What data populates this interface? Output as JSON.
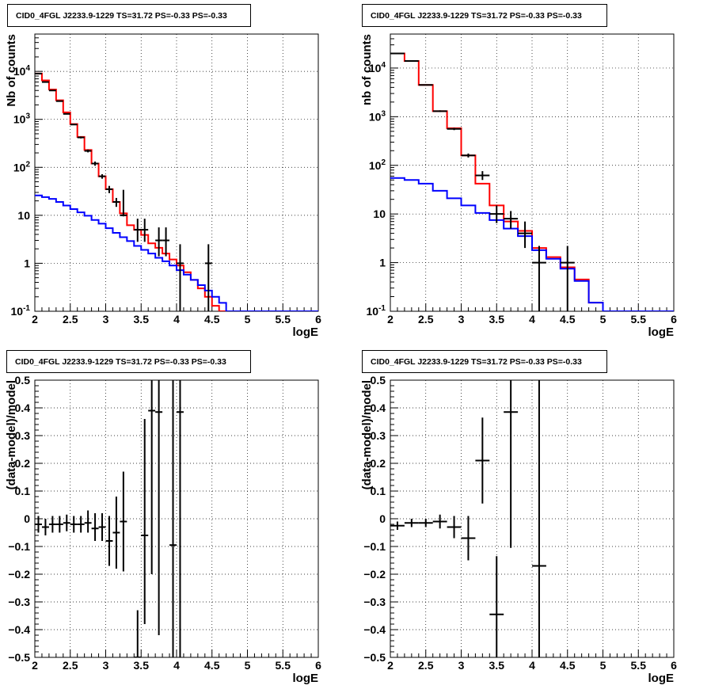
{
  "chart_data": [
    {
      "type": "line",
      "title": "CID0_4FGL J2233.9-1229 TS=31.72 PS=-0.33 PS=-0.33",
      "xlabel": "logE",
      "ylabel": "Nb of counts",
      "xlim": [
        2,
        6
      ],
      "ylim": [
        0.1,
        60000
      ],
      "yscale": "log",
      "grid": true,
      "x_ticks": [
        "2",
        "2.5",
        "3",
        "3.5",
        "4",
        "4.5",
        "5",
        "5.5",
        "6"
      ],
      "y_ticks": [
        {
          "v": 0.1,
          "label": "10^-1"
        },
        {
          "v": 1,
          "label": "1"
        },
        {
          "v": 10,
          "label": "10"
        },
        {
          "v": 100,
          "label": "10^2"
        },
        {
          "v": 1000,
          "label": "10^3"
        },
        {
          "v": 10000,
          "label": "10^4"
        }
      ],
      "series": [
        {
          "color": "#ff0000",
          "kind": "hist",
          "bin_width": 0.1,
          "x": [
            2.0,
            2.1,
            2.2,
            2.3,
            2.4,
            2.5,
            2.6,
            2.7,
            2.8,
            2.9,
            3.0,
            3.1,
            3.2,
            3.3,
            3.4,
            3.5,
            3.6,
            3.7,
            3.8,
            3.9,
            4.0,
            4.1,
            4.2,
            4.3,
            4.4,
            4.5,
            4.6,
            4.7,
            4.8,
            4.9,
            5.0,
            5.1,
            5.2,
            5.3,
            5.4,
            5.5,
            5.6,
            5.7,
            5.8,
            5.9
          ],
          "y": [
            9000,
            6500,
            4200,
            2500,
            1400,
            800,
            430,
            230,
            120,
            65,
            35,
            19,
            11,
            6.2,
            5,
            3.9,
            2.6,
            2.1,
            1.6,
            1.2,
            0.9,
            0.65,
            0.45,
            0.3,
            0.2,
            0.13,
            0.1,
            0.1,
            0.1,
            0.1,
            0.1,
            0.1,
            0.1,
            0.1,
            0.1,
            0.1,
            0.1,
            0.1,
            0.1,
            0.1
          ]
        },
        {
          "color": "#0000ff",
          "kind": "hist",
          "bin_width": 0.1,
          "x": [
            2.0,
            2.1,
            2.2,
            2.3,
            2.4,
            2.5,
            2.6,
            2.7,
            2.8,
            2.9,
            3.0,
            3.1,
            3.2,
            3.3,
            3.4,
            3.5,
            3.6,
            3.7,
            3.8,
            3.9,
            4.0,
            4.1,
            4.2,
            4.3,
            4.4,
            4.5,
            4.6,
            4.7,
            4.8,
            4.9,
            5.0,
            5.1,
            5.2,
            5.3,
            5.4,
            5.5,
            5.6,
            5.7,
            5.8,
            5.9
          ],
          "y": [
            26,
            24,
            22,
            19,
            16,
            13.5,
            11.5,
            9.8,
            8,
            6.7,
            5.4,
            4.3,
            3.5,
            2.9,
            2.3,
            1.9,
            1.6,
            1.3,
            1.1,
            0.9,
            0.72,
            0.58,
            0.45,
            0.35,
            0.27,
            0.2,
            0.15,
            0.1,
            0.1,
            0.1,
            0.1,
            0.1,
            0.1,
            0.1,
            0.1,
            0.1,
            0.1,
            0.1,
            0.1,
            0.1
          ]
        },
        {
          "color": "#000000",
          "kind": "points",
          "x_half": 0.05,
          "x": [
            2.05,
            2.15,
            2.25,
            2.35,
            2.45,
            2.55,
            2.65,
            2.75,
            2.85,
            2.95,
            3.05,
            3.15,
            3.25,
            3.45,
            3.55,
            3.75,
            3.85,
            4.05,
            4.45
          ],
          "y": [
            9000,
            6000,
            4000,
            2400,
            1300,
            780,
            420,
            220,
            120,
            65,
            35,
            19,
            10,
            5,
            5,
            3,
            3,
            1,
            1
          ],
          "ylo": [
            8800,
            5900,
            3930,
            2350,
            1270,
            760,
            400,
            205,
            108,
            58,
            29,
            15,
            9.5,
            2.8,
            2.8,
            1.4,
            1.4,
            0.1,
            0.1
          ],
          "yhi": [
            9200,
            6100,
            4070,
            2450,
            1330,
            800,
            440,
            235,
            132,
            72,
            41,
            23,
            34,
            8.5,
            8.5,
            5.6,
            5.6,
            2.5,
            2.5
          ]
        }
      ]
    },
    {
      "type": "line",
      "title": "CID0_4FGL J2233.9-1229 TS=31.72 PS=-0.33 PS=-0.33",
      "xlabel": "logE",
      "ylabel": "nb of counts",
      "xlim": [
        2,
        6
      ],
      "ylim": [
        0.1,
        50000
      ],
      "yscale": "log",
      "grid": true,
      "x_ticks": [
        "2",
        "2.5",
        "3",
        "3.5",
        "4",
        "4.5",
        "5",
        "5.5",
        "6"
      ],
      "y_ticks": [
        {
          "v": 0.1,
          "label": "10^-1"
        },
        {
          "v": 1,
          "label": "1"
        },
        {
          "v": 10,
          "label": "10"
        },
        {
          "v": 100,
          "label": "10^2"
        },
        {
          "v": 1000,
          "label": "10^3"
        },
        {
          "v": 10000,
          "label": "10^4"
        }
      ],
      "series": [
        {
          "color": "#ff0000",
          "kind": "hist",
          "bin_width": 0.2,
          "x": [
            2.0,
            2.2,
            2.4,
            2.6,
            2.8,
            3.0,
            3.2,
            3.4,
            3.6,
            3.8,
            4.0,
            4.2,
            4.4,
            4.6,
            4.8,
            5.0,
            5.2,
            5.4,
            5.6,
            5.8
          ],
          "y": [
            20000,
            14000,
            4500,
            1300,
            580,
            160,
            42,
            15,
            7,
            4.5,
            2,
            1.3,
            0.8,
            0.45,
            0.15,
            0.1,
            0.1,
            0.1,
            0.1,
            0.1
          ]
        },
        {
          "color": "#0000ff",
          "kind": "hist",
          "bin_width": 0.2,
          "x": [
            2.0,
            2.2,
            2.4,
            2.6,
            2.8,
            3.0,
            3.2,
            3.4,
            3.6,
            3.8,
            4.0,
            4.2,
            4.4,
            4.6,
            4.8,
            5.0,
            5.2,
            5.4,
            5.6,
            5.8
          ],
          "y": [
            55,
            50,
            42,
            30,
            21,
            15,
            10.5,
            7.5,
            5,
            3.5,
            1.8,
            1.2,
            0.75,
            0.42,
            0.15,
            0.1,
            0.1,
            0.1,
            0.1,
            0.1
          ]
        },
        {
          "color": "#000000",
          "kind": "points",
          "x_half": 0.1,
          "x": [
            2.1,
            2.3,
            2.5,
            2.7,
            2.9,
            3.1,
            3.3,
            3.5,
            3.7,
            3.9,
            4.1,
            4.5
          ],
          "y": [
            20000,
            14000,
            4500,
            1300,
            560,
            160,
            62,
            10,
            8,
            4,
            1,
            1
          ],
          "ylo": [
            19800,
            13800,
            4400,
            1250,
            530,
            145,
            50,
            6.5,
            5,
            2,
            0.1,
            0.1
          ],
          "yhi": [
            20200,
            14200,
            4600,
            1350,
            590,
            175,
            76,
            15,
            11.5,
            7,
            2.2,
            2.2
          ]
        }
      ]
    },
    {
      "type": "scatter",
      "title": "CID0_4FGL J2233.9-1229 TS=31.72 PS=-0.33 PS=-0.33",
      "xlabel": "logE",
      "ylabel": "(data-model)/model",
      "xlim": [
        2,
        6
      ],
      "ylim": [
        -0.5,
        0.5
      ],
      "yscale": "linear",
      "grid": true,
      "x_ticks": [
        "2",
        "2.5",
        "3",
        "3.5",
        "4",
        "4.5",
        "5",
        "5.5",
        "6"
      ],
      "y_ticks": [
        {
          "v": -0.5,
          "label": "−0.5"
        },
        {
          "v": -0.4,
          "label": "−0.4"
        },
        {
          "v": -0.3,
          "label": "−0.3"
        },
        {
          "v": -0.2,
          "label": "−0.2"
        },
        {
          "v": -0.1,
          "label": "−0.1"
        },
        {
          "v": 0,
          "label": "0"
        },
        {
          "v": 0.1,
          "label": "0.1"
        },
        {
          "v": 0.2,
          "label": "0.2"
        },
        {
          "v": 0.3,
          "label": "0.3"
        },
        {
          "v": 0.4,
          "label": "0.4"
        },
        {
          "v": 0.5,
          "label": "0.5"
        }
      ],
      "series": [
        {
          "color": "#000000",
          "kind": "points",
          "x_half": 0.05,
          "x": [
            2.05,
            2.15,
            2.25,
            2.35,
            2.45,
            2.55,
            2.65,
            2.75,
            2.85,
            2.95,
            3.05,
            3.15,
            3.25,
            3.45,
            3.55,
            3.65,
            3.75,
            3.95,
            4.05
          ],
          "y": [
            -0.02,
            -0.03,
            -0.02,
            -0.02,
            -0.015,
            -0.02,
            -0.02,
            -0.015,
            -0.035,
            -0.03,
            -0.08,
            -0.05,
            -0.01,
            -0.5,
            -0.06,
            0.39,
            0.385,
            -0.095,
            0.385
          ],
          "ylo": [
            -0.05,
            -0.06,
            -0.05,
            -0.05,
            -0.045,
            -0.05,
            -0.05,
            -0.05,
            -0.08,
            -0.08,
            -0.17,
            -0.18,
            -0.19,
            -0.5,
            -0.38,
            -0.2,
            -0.42,
            -0.5,
            -0.5
          ],
          "yhi": [
            0.01,
            0,
            0.01,
            0.01,
            0.015,
            0.01,
            0.01,
            0.03,
            0.02,
            0.02,
            0.01,
            0.08,
            0.17,
            -0.33,
            0.36,
            0.5,
            0.5,
            0.5,
            0.5
          ]
        }
      ]
    },
    {
      "type": "scatter",
      "title": "CID0_4FGL J2233.9-1229 TS=31.72 PS=-0.33 PS=-0.33",
      "xlabel": "logE",
      "ylabel": "(data-model)/model",
      "xlim": [
        2,
        6
      ],
      "ylim": [
        -0.5,
        0.5
      ],
      "yscale": "linear",
      "grid": true,
      "x_ticks": [
        "2",
        "2.5",
        "3",
        "3.5",
        "4",
        "4.5",
        "5",
        "5.5",
        "6"
      ],
      "y_ticks": [
        {
          "v": -0.5,
          "label": "−0.5"
        },
        {
          "v": -0.4,
          "label": "−0.4"
        },
        {
          "v": -0.3,
          "label": "−0.3"
        },
        {
          "v": -0.2,
          "label": "−0.2"
        },
        {
          "v": -0.1,
          "label": "−0.1"
        },
        {
          "v": 0,
          "label": "0"
        },
        {
          "v": 0.1,
          "label": "0.1"
        },
        {
          "v": 0.2,
          "label": "0.2"
        },
        {
          "v": 0.3,
          "label": "0.3"
        },
        {
          "v": 0.4,
          "label": "0.4"
        },
        {
          "v": 0.5,
          "label": "0.5"
        }
      ],
      "series": [
        {
          "color": "#000000",
          "kind": "points",
          "x_half": 0.1,
          "x": [
            2.1,
            2.3,
            2.5,
            2.7,
            2.9,
            3.1,
            3.3,
            3.5,
            3.7,
            4.1
          ],
          "y": [
            -0.025,
            -0.015,
            -0.015,
            -0.01,
            -0.03,
            -0.07,
            0.21,
            -0.345,
            0.385,
            -0.17
          ],
          "ylo": [
            -0.04,
            -0.03,
            -0.03,
            -0.035,
            -0.07,
            -0.15,
            0.055,
            -0.5,
            -0.105,
            -0.5
          ],
          "yhi": [
            -0.01,
            0,
            0,
            0.015,
            0.01,
            0.01,
            0.365,
            -0.135,
            0.5,
            0.5
          ]
        }
      ]
    }
  ]
}
